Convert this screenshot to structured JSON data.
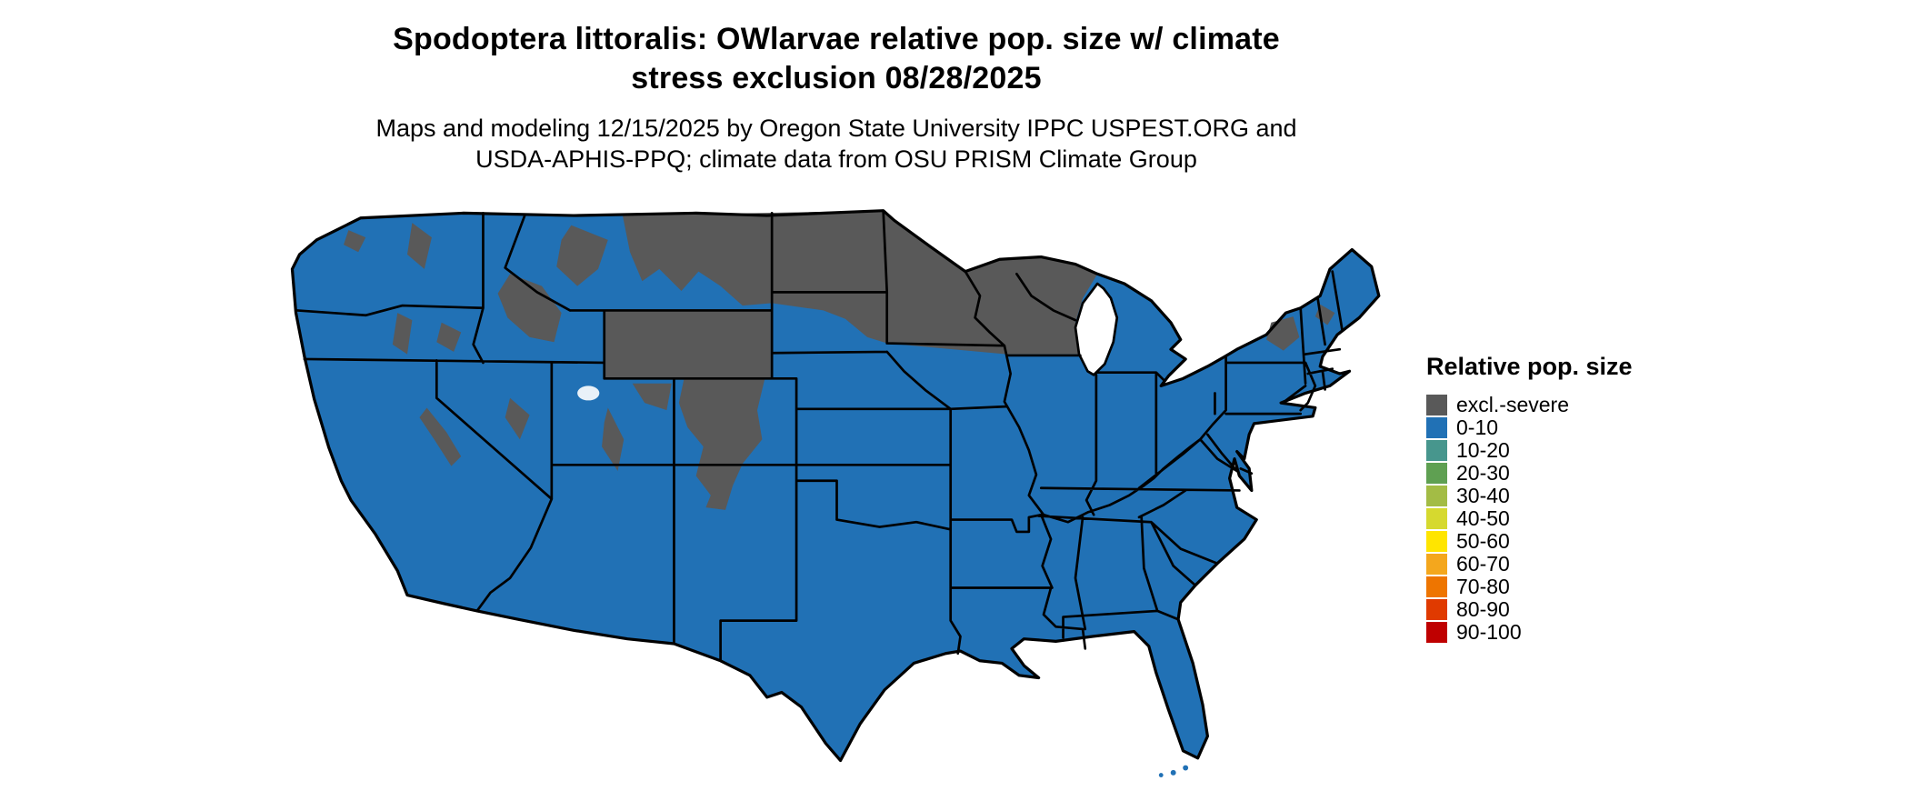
{
  "title": {
    "line1": "Spodoptera littoralis: OWlarvae relative pop. size w/ climate",
    "line2": "stress exclusion 08/28/2025"
  },
  "subtitle": {
    "line1": "Maps and modeling 12/15/2025 by Oregon State University IPPC USPEST.ORG and",
    "line2": "USDA-APHIS-PPQ; climate data from OSU PRISM Climate Group"
  },
  "legend": {
    "title": "Relative pop. size",
    "items": [
      {
        "label": "excl.-severe",
        "color": "#595959"
      },
      {
        "label": "0-10",
        "color": "#2171b5"
      },
      {
        "label": "10-20",
        "color": "#47968d"
      },
      {
        "label": "20-30",
        "color": "#5fa052"
      },
      {
        "label": "30-40",
        "color": "#a3bc45"
      },
      {
        "label": "40-50",
        "color": "#d6d92f"
      },
      {
        "label": "50-60",
        "color": "#ffe500"
      },
      {
        "label": "60-70",
        "color": "#f4a71d"
      },
      {
        "label": "70-80",
        "color": "#ee7500"
      },
      {
        "label": "80-90",
        "color": "#e03a00"
      },
      {
        "label": "90-100",
        "color": "#bf0000"
      }
    ]
  },
  "map": {
    "region": "Contiguous United States",
    "dominant_class": "0-10",
    "exclusion_class": "excl.-severe",
    "colors": {
      "land": "#2171b5",
      "exclusion": "#595959",
      "border": "#000000",
      "water": "#ffffff",
      "background": "#ffffff"
    }
  }
}
